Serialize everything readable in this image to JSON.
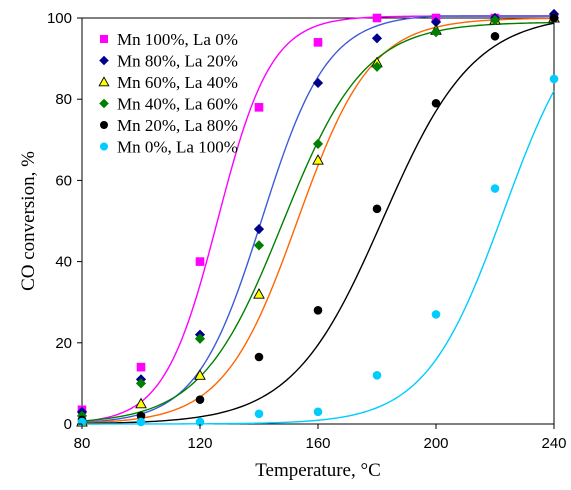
{
  "chart_data": {
    "type": "scatter",
    "xlabel": "Temperature, °C",
    "ylabel": "CO conversion, %",
    "xlim": [
      80,
      240
    ],
    "ylim": [
      0,
      100
    ],
    "x_ticks": [
      80,
      120,
      160,
      200,
      240
    ],
    "y_ticks": [
      0,
      20,
      40,
      60,
      80,
      100
    ],
    "x_tick_labels": [
      "80",
      "120",
      "160",
      "200",
      "240"
    ],
    "y_tick_labels": [
      "0",
      "20",
      "40",
      "60",
      "80",
      "100"
    ],
    "grid": false,
    "legend_position": "top-left",
    "series": [
      {
        "name": "Mn 100%, La 0%",
        "marker": "square",
        "color": "#ff00ff",
        "x": [
          80,
          100,
          120,
          140,
          160,
          180,
          200,
          220,
          240
        ],
        "y": [
          3.5,
          14,
          40,
          78,
          94,
          100,
          100,
          100,
          100
        ]
      },
      {
        "name": "Mn 80%, La 20%",
        "marker": "diamond",
        "color": "#00008b",
        "x": [
          80,
          100,
          120,
          140,
          160,
          180,
          200,
          220,
          240
        ],
        "y": [
          3,
          11,
          22,
          48,
          84,
          95,
          99,
          100,
          101
        ]
      },
      {
        "name": "Mn 60%, La 40%",
        "marker": "triangle",
        "color": "#ffff00",
        "x": [
          80,
          100,
          120,
          140,
          160,
          180,
          200,
          220,
          240
        ],
        "y": [
          0.5,
          5,
          12,
          32,
          65,
          89,
          97,
          99.5,
          100
        ]
      },
      {
        "name": "Mn 40%, La 60%",
        "marker": "diamond",
        "color": "#008000",
        "x": [
          80,
          100,
          120,
          140,
          160,
          180,
          200,
          220,
          240
        ],
        "y": [
          2,
          10,
          21,
          44,
          69,
          88,
          96.5,
          99.5,
          100
        ]
      },
      {
        "name": "Mn 20%, La 80%",
        "marker": "circle",
        "color": "#000000",
        "x": [
          80,
          100,
          120,
          140,
          160,
          180,
          200,
          220,
          240
        ],
        "y": [
          1,
          2,
          6,
          16.5,
          28,
          53,
          79,
          95.5,
          100
        ]
      },
      {
        "name": "Mn 0%, La 100%",
        "marker": "circle",
        "color": "#00ccff",
        "x": [
          80,
          100,
          120,
          140,
          160,
          180,
          200,
          220,
          240
        ],
        "y": [
          0.5,
          0.5,
          0.5,
          2.5,
          3,
          12,
          27,
          58,
          85
        ]
      }
    ],
    "fit_curves": [
      {
        "series": "Mn 100%, La 0%",
        "color": "#ff00ff",
        "t50": 126,
        "k": 0.11,
        "ymax": 100.5
      },
      {
        "series": "Mn 80%, La 20%",
        "color": "#3b5bdb",
        "t50": 141,
        "k": 0.09,
        "ymax": 101
      },
      {
        "series": "Mn 60%, La 40%",
        "color": "#ff6600",
        "t50": 153,
        "k": 0.08,
        "ymax": 100
      },
      {
        "series": "Mn 40%, La 60%",
        "color": "#008000",
        "t50": 148,
        "k": 0.072,
        "ymax": 99
      },
      {
        "series": "Mn 20%, La 80%",
        "color": "#000000",
        "t50": 182,
        "k": 0.065,
        "ymax": 101
      },
      {
        "series": "Mn 0%, La 100%",
        "color": "#00ccff",
        "t50": 223,
        "k": 0.075,
        "ymax": 105
      }
    ]
  }
}
